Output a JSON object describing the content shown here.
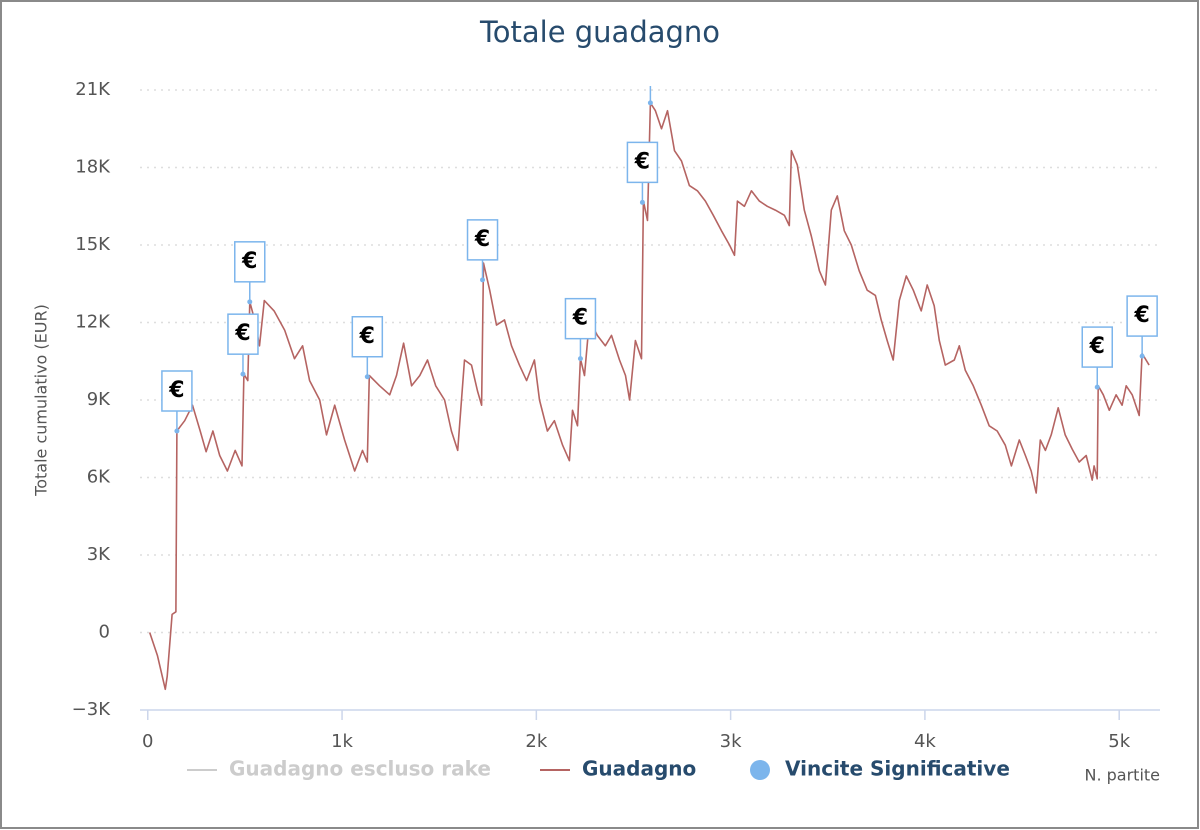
{
  "chart_data": {
    "type": "line",
    "title": "Totale guadagno",
    "y_label": "Totale cumulativo (EUR)",
    "x_label": "N. partite",
    "xlim": [
      -40,
      5210
    ],
    "ylim": [
      -3000,
      21000
    ],
    "xticks": [
      0,
      {
        "value": 1000,
        "label": "1k"
      },
      {
        "value": 2000,
        "label": "2k"
      },
      {
        "value": 3000,
        "label": "3k"
      },
      {
        "value": 4000,
        "label": "4k"
      },
      {
        "value": 5000,
        "label": "5k"
      }
    ],
    "yticks": [
      {
        "value": -3000,
        "label": "−3K"
      },
      0,
      {
        "value": 3000,
        "label": "3K"
      },
      {
        "value": 6000,
        "label": "6K"
      },
      {
        "value": 9000,
        "label": "9K"
      },
      {
        "value": 12000,
        "label": "12K"
      },
      {
        "value": 15000,
        "label": "15K"
      },
      {
        "value": 18000,
        "label": "18K"
      },
      {
        "value": 21000,
        "label": "21K"
      }
    ],
    "grid": true,
    "legend": "bottom",
    "series": [
      {
        "name": "Guadagno escluso rake",
        "color": "#cccccc",
        "visible": false
      },
      {
        "name": "Guadagno",
        "color": "#b56462",
        "x": [
          10,
          50,
          90,
          100,
          125,
          145,
          150,
          170,
          190,
          230,
          270,
          300,
          335,
          370,
          410,
          450,
          485,
          495,
          515,
          525,
          550,
          575,
          600,
          650,
          705,
          755,
          797,
          833,
          885,
          920,
          962,
          1013,
          1065,
          1105,
          1130,
          1140,
          1193,
          1245,
          1280,
          1317,
          1358,
          1400,
          1440,
          1482,
          1528,
          1563,
          1595,
          1630,
          1666,
          1697,
          1718,
          1728,
          1760,
          1795,
          1836,
          1872,
          1913,
          1950,
          1990,
          2016,
          2057,
          2093,
          2135,
          2170,
          2186,
          2212,
          2227,
          2248,
          2273,
          2314,
          2355,
          2387,
          2428,
          2459,
          2480,
          2510,
          2541,
          2551,
          2572,
          2587,
          2613,
          2644,
          2675,
          2711,
          2747,
          2788,
          2829,
          2870,
          2911,
          2953,
          2994,
          3020,
          3035,
          3071,
          3107,
          3148,
          3189,
          3230,
          3277,
          3302,
          3313,
          3343,
          3379,
          3415,
          3457,
          3488,
          3518,
          3549,
          3585,
          3621,
          3662,
          3703,
          3745,
          3775,
          3806,
          3837,
          3868,
          3904,
          3940,
          3981,
          4012,
          4048,
          4074,
          4105,
          4151,
          4177,
          4208,
          4249,
          4290,
          4331,
          4372,
          4414,
          4445,
          4486,
          4517,
          4547,
          4573,
          4594,
          4620,
          4650,
          4686,
          4722,
          4758,
          4794,
          4830,
          4861,
          4871,
          4887,
          4892,
          4918,
          4949,
          4984,
          5015,
          5036,
          5067,
          5103,
          5118,
          5154
        ],
        "values": [
          0,
          -900,
          -2200,
          -1700,
          700,
          800,
          7800,
          8000,
          8200,
          8800,
          7800,
          7000,
          7800,
          6850,
          6250,
          7050,
          6450,
          10000,
          9750,
          12800,
          12100,
          11100,
          12850,
          12450,
          11700,
          10600,
          11100,
          9750,
          9000,
          7650,
          8800,
          7450,
          6250,
          7050,
          6600,
          9950,
          9550,
          9200,
          9950,
          11200,
          9550,
          9950,
          10550,
          9550,
          9000,
          7800,
          7050,
          10550,
          10350,
          9350,
          8800,
          14300,
          13250,
          11900,
          12100,
          11100,
          10350,
          9750,
          10550,
          9000,
          7800,
          8200,
          7250,
          6650,
          8600,
          8000,
          10600,
          9950,
          12100,
          11500,
          11100,
          11500,
          10550,
          9950,
          9000,
          11300,
          10600,
          16700,
          15950,
          20500,
          20200,
          19500,
          20200,
          18650,
          18250,
          17300,
          17100,
          16700,
          16150,
          15550,
          15000,
          14600,
          16700,
          16500,
          17100,
          16700,
          16500,
          16350,
          16150,
          15750,
          18650,
          18100,
          16350,
          15350,
          14000,
          13450,
          16350,
          16900,
          15550,
          15000,
          14000,
          13250,
          13050,
          12100,
          11300,
          10550,
          12850,
          13800,
          13250,
          12450,
          13450,
          12650,
          11300,
          10350,
          10550,
          11100,
          10150,
          9550,
          8800,
          8000,
          7800,
          7250,
          6450,
          7450,
          6850,
          6250,
          5400,
          7450,
          7050,
          7650,
          8700,
          7650,
          7100,
          6600,
          6850,
          5900,
          6450,
          5950,
          9550,
          9200,
          8600,
          9200,
          8800,
          9550,
          9200,
          8400,
          10800,
          10350
        ]
      },
      {
        "name": "Vincite Significative",
        "color": "#7cb5ec",
        "marker": "flags",
        "x": [
          150,
          490,
          525,
          1130,
          1723,
          2227,
          2546,
          2587,
          4887,
          5118
        ],
        "values": [
          7800,
          10000,
          12800,
          9900,
          13650,
          10600,
          16650,
          20500,
          9500,
          10700
        ],
        "labels": [
          "€",
          "€",
          "€",
          "€",
          "€",
          "€",
          "€",
          "€",
          "€",
          "€"
        ]
      }
    ]
  }
}
